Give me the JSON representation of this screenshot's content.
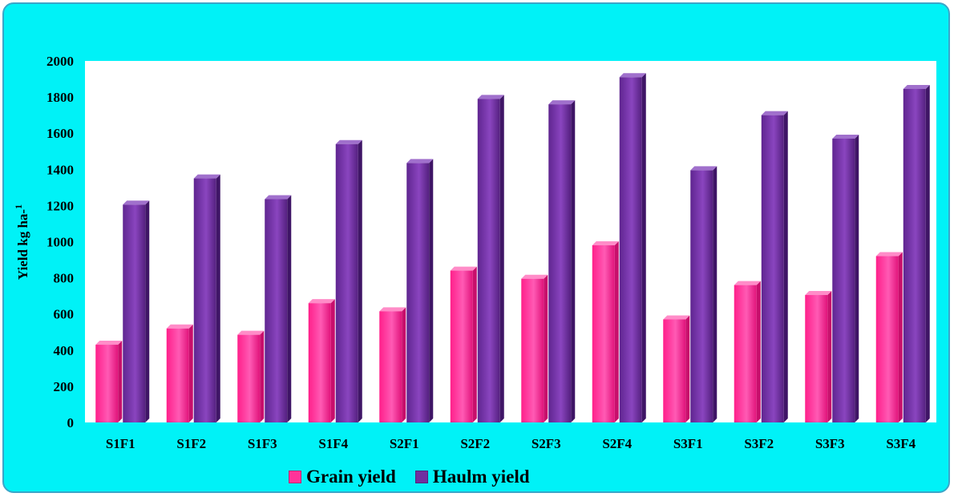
{
  "chart_data": {
    "type": "bar",
    "title": "",
    "xlabel": "",
    "ylabel": "Yield kg ha-1",
    "ylabel_main": "Yield kg ha-",
    "ylabel_sup": "1",
    "ylim": [
      0,
      2000
    ],
    "yticks": [
      0,
      200,
      400,
      600,
      800,
      1000,
      1200,
      1400,
      1600,
      1800,
      2000
    ],
    "categories": [
      "S1F1",
      "S1F2",
      "S1F3",
      "S1F4",
      "S2F1",
      "S2F2",
      "S2F3",
      "S2F4",
      "S3F1",
      "S3F2",
      "S3F3",
      "S3F4"
    ],
    "series": [
      {
        "name": "Grain yield",
        "color": "#ff3399",
        "values": [
          430,
          520,
          485,
          660,
          615,
          840,
          795,
          980,
          570,
          760,
          705,
          920
        ]
      },
      {
        "name": "Haulm yield",
        "color": "#7030a0",
        "values": [
          1205,
          1350,
          1235,
          1540,
          1435,
          1790,
          1760,
          1910,
          1395,
          1700,
          1570,
          1845
        ]
      }
    ],
    "grid": false,
    "legend_position": "bottom"
  }
}
